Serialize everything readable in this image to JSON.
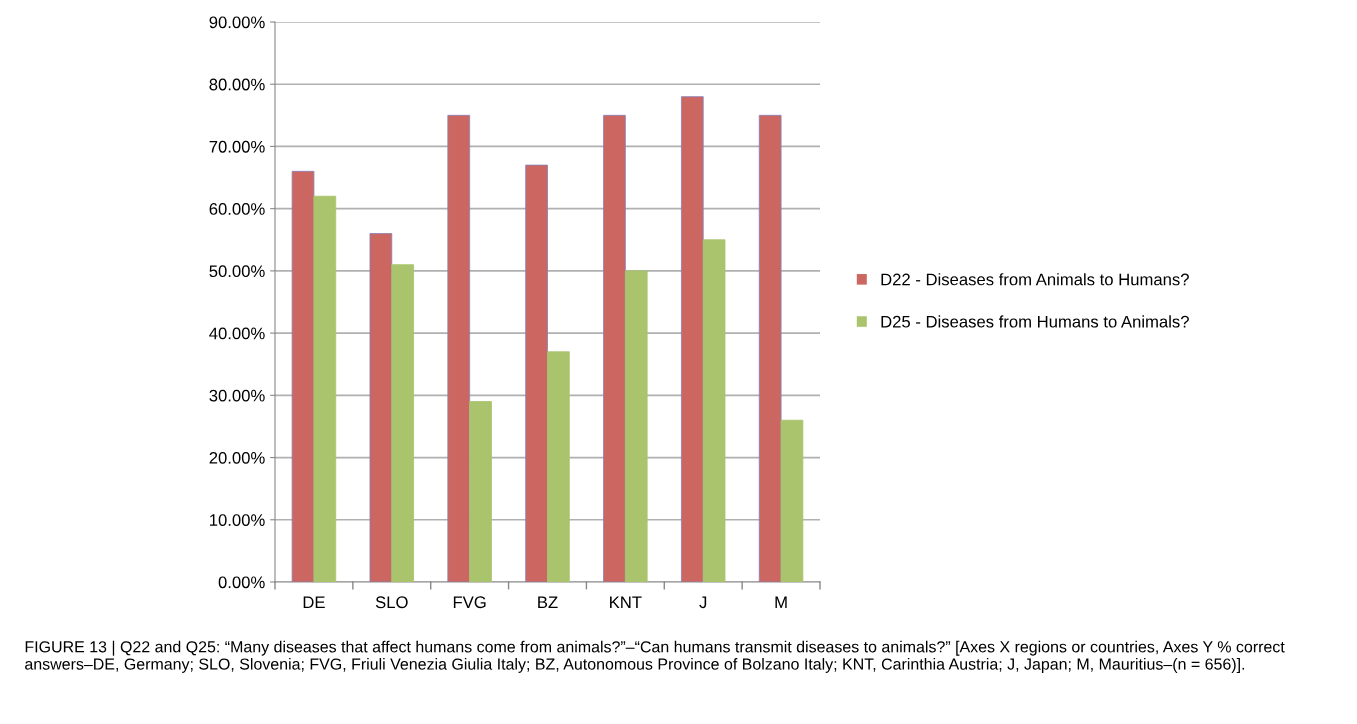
{
  "chart_data": {
    "type": "bar",
    "categories": [
      "DE",
      "SLO",
      "FVG",
      "BZ",
      "KNT",
      "J",
      "M"
    ],
    "series": [
      {
        "name": "D22 - Diseases from Animals to Humans?",
        "color": "#cc6660",
        "values": [
          66,
          56,
          75,
          67,
          75,
          78,
          75
        ]
      },
      {
        "name": "D25 - Diseases from Humans to Animals?",
        "color": "#a9c46c",
        "values": [
          62,
          51,
          29,
          37,
          50,
          55,
          26
        ]
      }
    ],
    "ylim": [
      0,
      90
    ],
    "yticks": [
      {
        "value": 0,
        "label": "0.00%"
      },
      {
        "value": 10,
        "label": "10.00%"
      },
      {
        "value": 20,
        "label": "20.00%"
      },
      {
        "value": 30,
        "label": "30.00%"
      },
      {
        "value": 40,
        "label": "40.00%"
      },
      {
        "value": 50,
        "label": "50.00%"
      },
      {
        "value": 60,
        "label": "60.00%"
      },
      {
        "value": 70,
        "label": "70.00%"
      },
      {
        "value": 80,
        "label": "80.00%"
      },
      {
        "value": 90,
        "label": "90.00%"
      }
    ],
    "grid": "y",
    "legend": "right",
    "annotations": [
      "FIGURE 13 | Q22 and Q25: “Many diseases that affect humans come from animals?”–“Can humans transmit diseases to animals?” [Axes X regions or countries, Axes Y % correct answers–DE, Germany; SLO, Slovenia; FVG, Friuli Venezia Giulia Italy; BZ, Autonomous Province of Bolzano Italy; KNT, Carinthia Austria; J, Japan; M, Mauritius–(n = 656)]."
    ]
  }
}
